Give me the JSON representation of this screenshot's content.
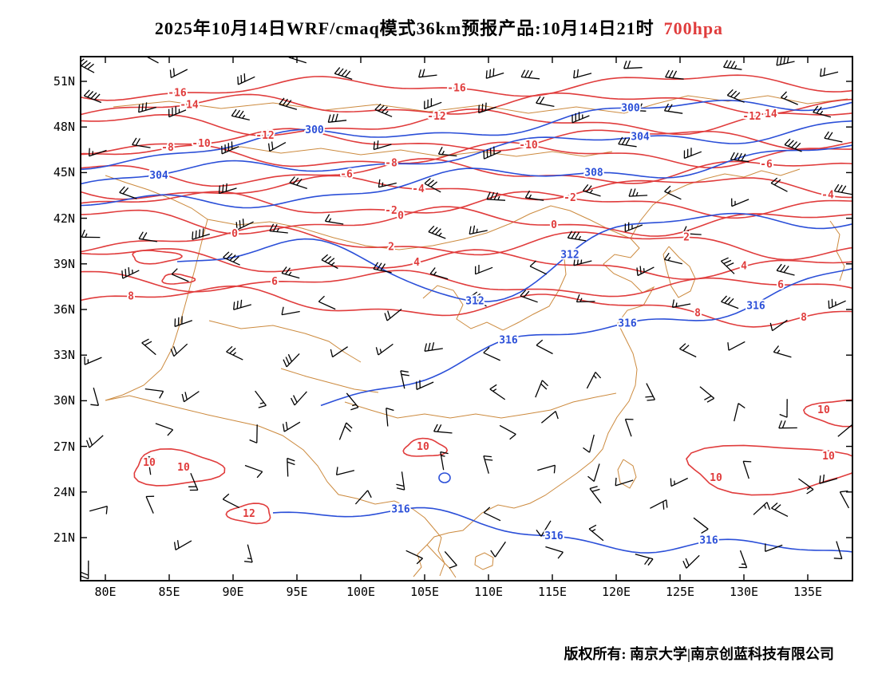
{
  "title": {
    "main": "2025年10月14日WRF/cmaq模式36km预报产品:10月14日21时",
    "level": "700hpa"
  },
  "footer": {
    "text": "版权所有: 南京大学|南京创蓝科技有限公司"
  },
  "axes": {
    "y_labels": [
      "51N",
      "48N",
      "45N",
      "42N",
      "39N",
      "36N",
      "33N",
      "30N",
      "27N",
      "24N",
      "21N"
    ],
    "x_labels": [
      "80E",
      "85E",
      "90E",
      "95E",
      "100E",
      "105E",
      "110E",
      "115E",
      "120E",
      "125E",
      "130E",
      "135E"
    ]
  },
  "chart_data": {
    "type": "contour-map",
    "title": "2025年10月14日WRF/cmaq模式36km预报产品:10月14日21时 700hpa",
    "x_axis": {
      "tick_labels": [
        "80E",
        "85E",
        "90E",
        "95E",
        "100E",
        "105E",
        "110E",
        "115E",
        "120E",
        "125E",
        "130E",
        "135E"
      ],
      "range_deg_east": [
        78,
        138
      ]
    },
    "y_axis": {
      "tick_labels": [
        "21N",
        "24N",
        "27N",
        "30N",
        "33N",
        "36N",
        "39N",
        "42N",
        "45N",
        "48N",
        "51N"
      ],
      "range_deg_north": [
        19.5,
        52.5
      ]
    },
    "red_contour_levels": [
      -16,
      -14,
      -12,
      -10,
      -8,
      -6,
      -4,
      -2,
      0,
      2,
      4,
      6,
      8,
      10,
      12
    ],
    "red_color": "#e03c3c",
    "blue_contour_levels": [
      300,
      304,
      308,
      312,
      316
    ],
    "blue_color": "#2b4fd8",
    "coastline_color": "#cc8a3e",
    "wind_barbs": {
      "present": true,
      "color": "#000000"
    }
  }
}
